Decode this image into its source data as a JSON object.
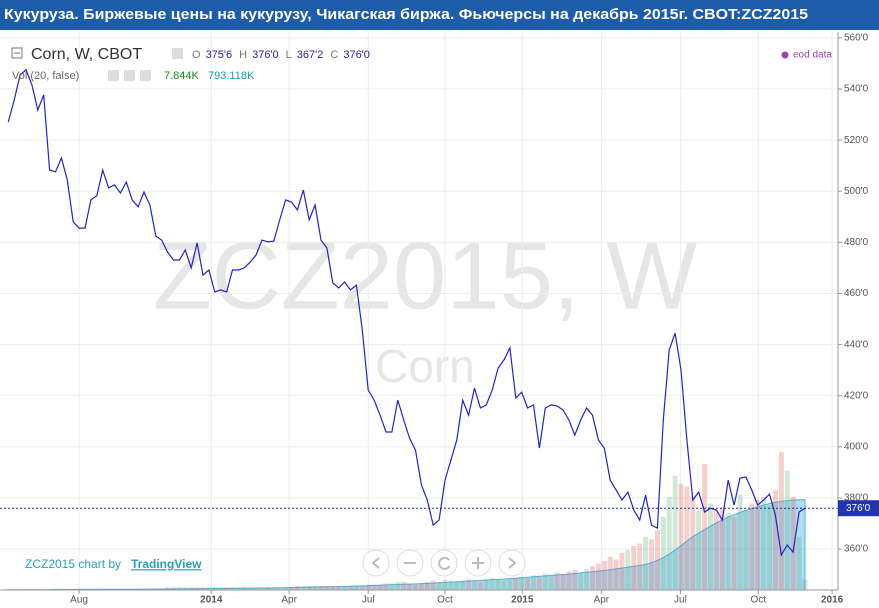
{
  "chart_data": {
    "type": "line",
    "title": "Кукуруза. Биржевые цены на кукурузу, Чикагская биржа. Фьючерсы на декабрь 2015г. CBOT:ZCZ2015",
    "watermark": "ZCZ2015, W",
    "watermark_subtitle": "Corn",
    "ohlc": [
      [
        "O",
        "375'6"
      ],
      [
        "H",
        "376'0"
      ],
      [
        "L",
        "367'2"
      ],
      [
        "C",
        "376'0"
      ]
    ],
    "source": "eod data",
    "credit": "ZCZ2015 chart by",
    "credit_link": "TradingView",
    "last_price": {
      "value": 376,
      "label": "376'0"
    },
    "grid": true,
    "xlim": [
      -1.4,
      140.6
    ],
    "xticks": [
      {
        "value": 12,
        "label": "Aug"
      },
      {
        "value": 34.4,
        "label": "2014"
      },
      {
        "value": 47.6,
        "label": "Apr"
      },
      {
        "value": 61,
        "label": "Jul"
      },
      {
        "value": 74,
        "label": "Oct"
      },
      {
        "value": 87.1,
        "label": "2015"
      },
      {
        "value": 100.5,
        "label": "Apr"
      },
      {
        "value": 113.9,
        "label": "Jul"
      },
      {
        "value": 127.1,
        "label": "Oct"
      },
      {
        "value": 139.6,
        "label": "2016"
      }
    ],
    "ylim": [
      344,
      562.3
    ],
    "yticks": [
      {
        "value": 360,
        "label": "360'0"
      },
      {
        "value": 380,
        "label": "380'0"
      },
      {
        "value": 400,
        "label": "400'0"
      },
      {
        "value": 420,
        "label": "420'0"
      },
      {
        "value": 440,
        "label": "440'0"
      },
      {
        "value": 460,
        "label": "460'0"
      },
      {
        "value": 480,
        "label": "480'0"
      },
      {
        "value": 500,
        "label": "500'0"
      },
      {
        "value": 520,
        "label": "520'0"
      },
      {
        "value": 540,
        "label": "540'0"
      },
      {
        "value": 560,
        "label": "560'0"
      }
    ],
    "series": [
      {
        "name": "Corn, W, CBOT",
        "color": "#2424c0",
        "values": [
          527.1,
          535.7,
          545.5,
          547.5,
          541.6,
          531.8,
          537.7,
          508.3,
          507.6,
          513.0,
          504.4,
          488.0,
          485.6,
          485.6,
          496.6,
          498.2,
          508.3,
          501.3,
          502.5,
          499.3,
          503.6,
          496.6,
          493.9,
          499.7,
          494.6,
          482.5,
          480.9,
          476.2,
          473.1,
          473.1,
          477.0,
          470.0,
          479.8,
          467.2,
          469.2,
          460.6,
          461.4,
          460.6,
          469.2,
          469.2,
          470.0,
          472.3,
          475.1,
          480.9,
          480.2,
          480.5,
          488.8,
          496.6,
          495.8,
          492.7,
          500.5,
          488.8,
          494.6,
          480.9,
          477.8,
          464.1,
          462.2,
          464.5,
          461.4,
          463.3,
          445.7,
          422.2,
          418.3,
          412.4,
          405.8,
          405.8,
          418.3,
          410.5,
          403.4,
          398.7,
          385.1,
          379.2,
          369.4,
          371.4,
          387.0,
          394.8,
          402.7,
          418.3,
          412.4,
          423.0,
          415.2,
          416.4,
          422.2,
          430.8,
          434.0,
          438.7,
          419.1,
          421.4,
          415.2,
          416.4,
          399.5,
          415.2,
          416.4,
          416.0,
          414.4,
          410.5,
          404.6,
          410.5,
          415.2,
          412.4,
          402.7,
          399.5,
          387.0,
          383.1,
          379.2,
          382.3,
          375.3,
          371.4,
          381.1,
          369.4,
          368.2,
          410.5,
          437.9,
          444.5,
          430.1,
          402.7,
          379.2,
          382.3,
          374.5,
          376.0,
          375.3,
          371.4,
          387.0,
          377.2,
          387.8,
          388.2,
          383.1,
          377.2,
          379.2,
          381.5,
          373.3,
          357.7,
          361.6,
          358.8,
          374.5,
          376.0
        ]
      }
    ],
    "volume": {
      "name": "Vol (20, false)",
      "last_label": "7.844K",
      "ylim": [
        0,
        420
      ],
      "up_color": "rgba(90,170,110,0.28)",
      "down_color": "rgba(220,90,80,0.28)",
      "values": [
        1,
        1,
        1,
        1,
        1,
        1,
        1,
        1,
        1,
        1,
        1,
        1,
        1,
        1,
        1,
        1,
        1,
        1,
        1,
        1,
        1,
        1,
        1,
        1,
        1,
        1,
        1,
        2,
        2,
        2,
        2,
        2,
        2,
        2,
        2,
        2,
        2,
        2,
        2,
        2,
        2,
        2,
        2,
        2,
        2,
        2,
        2,
        2,
        2,
        3,
        3,
        3,
        3,
        3,
        3,
        3,
        3,
        3,
        3,
        3,
        3,
        4,
        4,
        4,
        5,
        5,
        6,
        6,
        5,
        4,
        5,
        6,
        7,
        6,
        8,
        7,
        6,
        7,
        8,
        7,
        6,
        8,
        9,
        8,
        7,
        8,
        9,
        10,
        9,
        11,
        10,
        12,
        11,
        13,
        12,
        14,
        15,
        13,
        16,
        18,
        20,
        22,
        25,
        23,
        28,
        30,
        33,
        35,
        40,
        38,
        45,
        55,
        70,
        86,
        80,
        78,
        70,
        60,
        95,
        65,
        60,
        62,
        58,
        55,
        72,
        60,
        65,
        68,
        70,
        64,
        75,
        104,
        90,
        70,
        40,
        7.844
      ]
    },
    "open_interest": {
      "last_label": "793.118K",
      "color": "#4fb3e6",
      "ylim": [
        0,
        4900
      ],
      "values": [
        2,
        2,
        2,
        2,
        3,
        3,
        3,
        3,
        4,
        4,
        4,
        4,
        5,
        5,
        5,
        5,
        6,
        6,
        6,
        6,
        7,
        7,
        7,
        8,
        8,
        8,
        9,
        9,
        9,
        10,
        10,
        11,
        11,
        12,
        12,
        13,
        13,
        14,
        14,
        15,
        16,
        16,
        17,
        18,
        18,
        19,
        20,
        21,
        22,
        23,
        24,
        25,
        26,
        27,
        28,
        29,
        30,
        31,
        33,
        35,
        36,
        38,
        40,
        42,
        44,
        46,
        48,
        50,
        52,
        54,
        56,
        58,
        60,
        63,
        66,
        69,
        72,
        75,
        78,
        81,
        84,
        87,
        90,
        93,
        96,
        100,
        104,
        108,
        112,
        116,
        120,
        124,
        128,
        132,
        136,
        140,
        145,
        150,
        155,
        160,
        166,
        172,
        178,
        185,
        192,
        200,
        208,
        216,
        224,
        240,
        260,
        285,
        315,
        350,
        390,
        430,
        470,
        500,
        530,
        560,
        590,
        615,
        640,
        660,
        680,
        700,
        715,
        730,
        745,
        760,
        770,
        780,
        785,
        790,
        792,
        793.118
      ]
    }
  }
}
